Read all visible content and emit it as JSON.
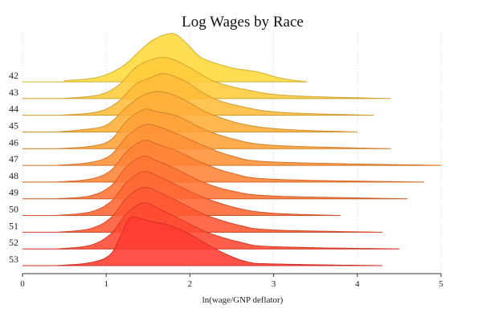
{
  "chart_data": {
    "type": "ridgeline",
    "title": "Log Wages by Race",
    "xlabel": "ln(wage/GNP deflator)",
    "ylabel": "",
    "xlim": [
      0,
      5
    ],
    "x_ticks": [
      0,
      1,
      2,
      3,
      4,
      5
    ],
    "grid": "vertical dotted at x ticks",
    "color_low": "#ff3b30",
    "color_high": "#ffd93b",
    "series": [
      {
        "name": "42",
        "peak": 1.78,
        "spread": 0.36,
        "tail_end": 3.4,
        "values": [
          [
            0.5,
            0.02
          ],
          [
            0.9,
            0.08
          ],
          [
            1.2,
            0.28
          ],
          [
            1.45,
            0.62
          ],
          [
            1.6,
            0.78
          ],
          [
            1.8,
            0.86
          ],
          [
            1.95,
            0.7
          ],
          [
            2.15,
            0.42
          ],
          [
            2.5,
            0.25
          ],
          [
            2.8,
            0.18
          ],
          [
            3.1,
            0.06
          ],
          [
            3.4,
            0.0
          ]
        ]
      },
      {
        "name": "43",
        "peak": 1.65,
        "spread": 0.38,
        "tail_end": 4.4,
        "values": [
          [
            0.45,
            0.0
          ],
          [
            0.9,
            0.06
          ],
          [
            1.15,
            0.24
          ],
          [
            1.35,
            0.55
          ],
          [
            1.55,
            0.7
          ],
          [
            1.75,
            0.72
          ],
          [
            2.0,
            0.55
          ],
          [
            2.3,
            0.3
          ],
          [
            2.7,
            0.15
          ],
          [
            3.2,
            0.05
          ],
          [
            4.4,
            0.0
          ]
        ]
      },
      {
        "name": "44",
        "peak": 1.7,
        "spread": 0.38,
        "tail_end": 4.2,
        "values": [
          [
            0.45,
            0.0
          ],
          [
            0.9,
            0.06
          ],
          [
            1.15,
            0.25
          ],
          [
            1.35,
            0.55
          ],
          [
            1.55,
            0.68
          ],
          [
            1.7,
            0.74
          ],
          [
            1.95,
            0.6
          ],
          [
            2.25,
            0.32
          ],
          [
            2.6,
            0.16
          ],
          [
            3.1,
            0.05
          ],
          [
            4.2,
            0.0
          ]
        ]
      },
      {
        "name": "45",
        "peak": 1.65,
        "spread": 0.4,
        "tail_end": 4.0,
        "values": [
          [
            0.4,
            0.0
          ],
          [
            0.7,
            0.04
          ],
          [
            1.0,
            0.12
          ],
          [
            1.25,
            0.45
          ],
          [
            1.45,
            0.66
          ],
          [
            1.65,
            0.72
          ],
          [
            1.9,
            0.6
          ],
          [
            2.2,
            0.35
          ],
          [
            2.6,
            0.15
          ],
          [
            3.1,
            0.05
          ],
          [
            4.0,
            0.0
          ]
        ]
      },
      {
        "name": "46",
        "peak": 1.55,
        "spread": 0.4,
        "tail_end": 4.4,
        "values": [
          [
            0.4,
            0.0
          ],
          [
            0.8,
            0.04
          ],
          [
            1.05,
            0.15
          ],
          [
            1.25,
            0.5
          ],
          [
            1.45,
            0.7
          ],
          [
            1.6,
            0.66
          ],
          [
            1.85,
            0.58
          ],
          [
            2.15,
            0.36
          ],
          [
            2.5,
            0.18
          ],
          [
            3.0,
            0.06
          ],
          [
            4.4,
            0.0
          ]
        ]
      },
      {
        "name": "47",
        "peak": 1.55,
        "spread": 0.4,
        "tail_end": 5.0,
        "values": [
          [
            0.4,
            0.0
          ],
          [
            0.8,
            0.05
          ],
          [
            1.05,
            0.18
          ],
          [
            1.25,
            0.52
          ],
          [
            1.45,
            0.72
          ],
          [
            1.6,
            0.7
          ],
          [
            1.85,
            0.56
          ],
          [
            2.15,
            0.36
          ],
          [
            2.5,
            0.17
          ],
          [
            3.0,
            0.06
          ],
          [
            5.0,
            0.0
          ]
        ]
      },
      {
        "name": "48",
        "peak": 1.5,
        "spread": 0.4,
        "tail_end": 4.8,
        "values": [
          [
            0.4,
            0.0
          ],
          [
            0.8,
            0.05
          ],
          [
            1.05,
            0.2
          ],
          [
            1.25,
            0.55
          ],
          [
            1.45,
            0.74
          ],
          [
            1.6,
            0.68
          ],
          [
            1.85,
            0.55
          ],
          [
            2.15,
            0.34
          ],
          [
            2.5,
            0.16
          ],
          [
            3.0,
            0.05
          ],
          [
            4.8,
            0.0
          ]
        ]
      },
      {
        "name": "49",
        "peak": 1.48,
        "spread": 0.4,
        "tail_end": 4.6,
        "values": [
          [
            0.4,
            0.0
          ],
          [
            0.8,
            0.05
          ],
          [
            1.05,
            0.22
          ],
          [
            1.25,
            0.58
          ],
          [
            1.45,
            0.76
          ],
          [
            1.6,
            0.68
          ],
          [
            1.85,
            0.52
          ],
          [
            2.15,
            0.3
          ],
          [
            2.5,
            0.14
          ],
          [
            3.0,
            0.05
          ],
          [
            4.6,
            0.0
          ]
        ]
      },
      {
        "name": "50",
        "peak": 1.45,
        "spread": 0.4,
        "tail_end": 3.8,
        "values": [
          [
            0.4,
            0.0
          ],
          [
            0.8,
            0.06
          ],
          [
            1.05,
            0.24
          ],
          [
            1.25,
            0.6
          ],
          [
            1.45,
            0.78
          ],
          [
            1.65,
            0.68
          ],
          [
            1.9,
            0.5
          ],
          [
            2.2,
            0.3
          ],
          [
            2.6,
            0.12
          ],
          [
            3.0,
            0.04
          ],
          [
            3.8,
            0.0
          ]
        ]
      },
      {
        "name": "51",
        "peak": 1.45,
        "spread": 0.4,
        "tail_end": 4.3,
        "values": [
          [
            0.4,
            0.0
          ],
          [
            0.8,
            0.06
          ],
          [
            1.05,
            0.25
          ],
          [
            1.25,
            0.62
          ],
          [
            1.45,
            0.8
          ],
          [
            1.65,
            0.7
          ],
          [
            1.9,
            0.52
          ],
          [
            2.2,
            0.3
          ],
          [
            2.6,
            0.12
          ],
          [
            3.0,
            0.04
          ],
          [
            4.3,
            0.0
          ]
        ]
      },
      {
        "name": "52",
        "peak": 1.45,
        "spread": 0.4,
        "tail_end": 4.5,
        "values": [
          [
            0.4,
            0.0
          ],
          [
            0.8,
            0.06
          ],
          [
            1.05,
            0.26
          ],
          [
            1.25,
            0.64
          ],
          [
            1.45,
            0.82
          ],
          [
            1.65,
            0.7
          ],
          [
            1.9,
            0.52
          ],
          [
            2.2,
            0.3
          ],
          [
            2.6,
            0.12
          ],
          [
            3.0,
            0.04
          ],
          [
            4.5,
            0.0
          ]
        ]
      },
      {
        "name": "53",
        "peak": 1.3,
        "spread": 0.4,
        "tail_end": 4.3,
        "values": [
          [
            0.4,
            0.0
          ],
          [
            0.8,
            0.05
          ],
          [
            1.05,
            0.2
          ],
          [
            1.2,
            0.62
          ],
          [
            1.3,
            0.86
          ],
          [
            1.5,
            0.8
          ],
          [
            1.75,
            0.72
          ],
          [
            2.0,
            0.56
          ],
          [
            2.3,
            0.3
          ],
          [
            2.65,
            0.08
          ],
          [
            3.0,
            0.03
          ],
          [
            4.3,
            0.0
          ]
        ]
      }
    ]
  }
}
